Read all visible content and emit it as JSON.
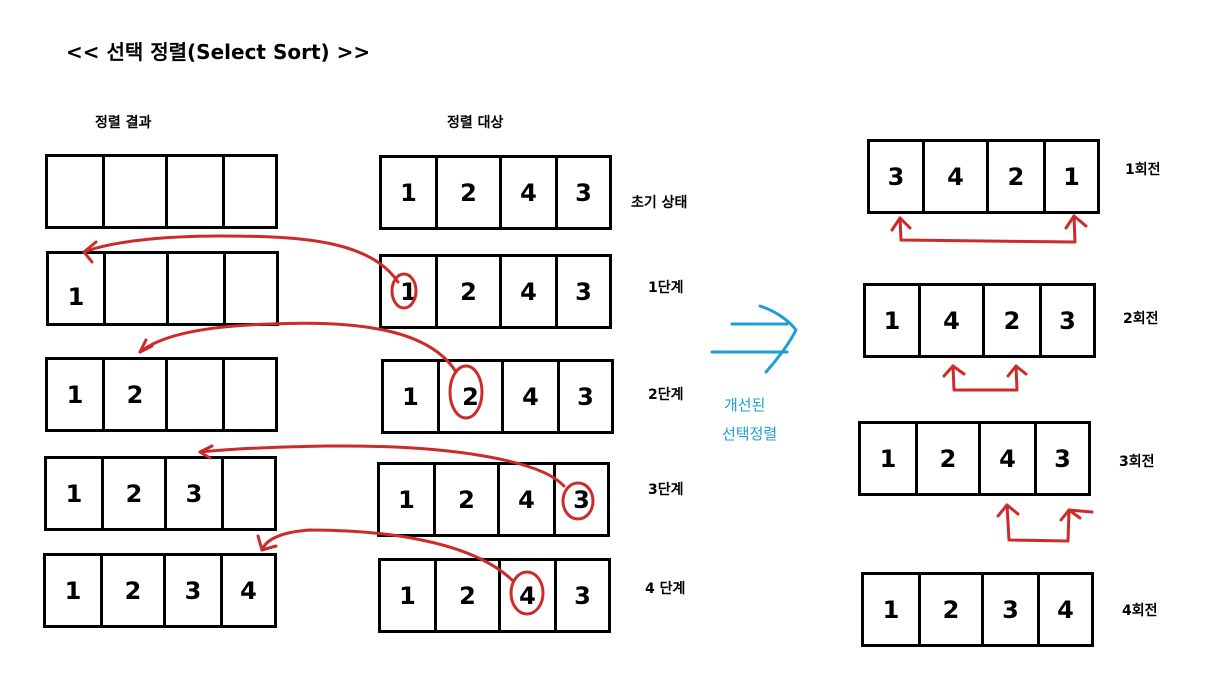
{
  "title": "<< 선택 정렬(Select Sort) >>",
  "labels": {
    "result_header": "정렬 결과",
    "target_header": "정렬 대상",
    "improved_line1": "개선된",
    "improved_line2": "선택정렬"
  },
  "result_rows": [
    [
      "",
      "",
      "",
      ""
    ],
    [
      "1",
      "",
      "",
      ""
    ],
    [
      "1",
      "2",
      "",
      ""
    ],
    [
      "1",
      "2",
      "3",
      ""
    ],
    [
      "1",
      "2",
      "3",
      "4"
    ]
  ],
  "target_rows": [
    [
      "1",
      "2",
      "4",
      "3"
    ],
    [
      "1",
      "2",
      "4",
      "3"
    ],
    [
      "1",
      "2",
      "4",
      "3"
    ],
    [
      "1",
      "2",
      "4",
      "3"
    ],
    [
      "1",
      "2",
      "4",
      "3"
    ]
  ],
  "step_labels": [
    "초기 상태",
    "1단계",
    "2단계",
    "3단계",
    "4 단계"
  ],
  "round_rows": [
    [
      "3",
      "4",
      "2",
      "1"
    ],
    [
      "1",
      "4",
      "2",
      "3"
    ],
    [
      "1",
      "2",
      "4",
      "3"
    ],
    [
      "1",
      "2",
      "3",
      "4"
    ]
  ],
  "round_labels": [
    "1회전",
    "2회전",
    "3회전",
    "4회전"
  ],
  "colors": {
    "annotation": "#cc2b2b",
    "arrow": "#1f9fd0"
  }
}
